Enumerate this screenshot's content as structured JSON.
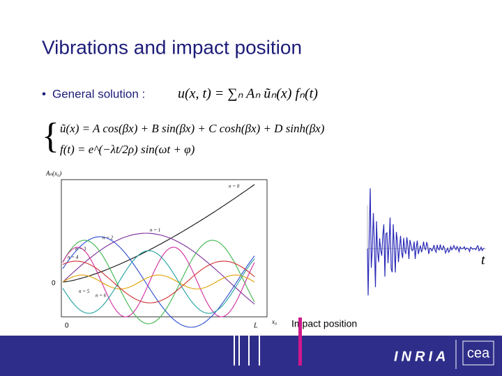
{
  "title": "Vibrations and impact position",
  "bullet": {
    "label": "General solution :",
    "formula": "u(x, t) = ∑ₙ Aₙ ũₙ(x) fₙ(t)"
  },
  "system": [
    "ũ(x) = A cos(βx) + B sin(βx) + C cosh(βx) + D sinh(βx)",
    "f(t) = e^(−λt/2ρ) sin(ωt + φ)"
  ],
  "mode_plot": {
    "y_label": "Aₙ(x₀)",
    "curve_labels": [
      "n = 0",
      "n = 1",
      "n = 2",
      "n = 3",
      "n = 4",
      "n = 5",
      "n = 6"
    ],
    "y_origin": "0",
    "x_origin": "0",
    "x_end": "L",
    "x_label": "x₀"
  },
  "signal_plot": {
    "x_label": "t"
  },
  "caption": "Impact position",
  "footer": {
    "logo": "INRIA",
    "logo2": "cea"
  }
}
